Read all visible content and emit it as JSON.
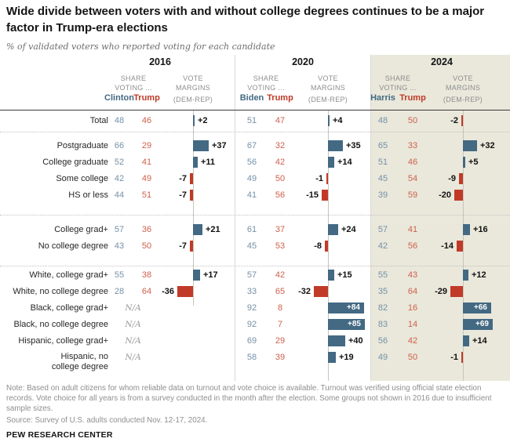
{
  "title": "Wide divide between voters with and without college degrees continues to be a major factor in Trump-era elections",
  "subtitle": "% of validated voters who reported voting for each candidate",
  "colors": {
    "dem_dark": "#436983",
    "rep_dark": "#bf3927",
    "dem_value": "#7591a7",
    "rep_value": "#d0604c",
    "bar_pos": "#436983",
    "bar_neg": "#c13a28",
    "highlight_bg": "#e9e8db"
  },
  "chart_data": {
    "type": "table",
    "unit": "percent of validated voters",
    "col_headers": {
      "share_line1": "SHARE",
      "share_line2": "VOTING ...",
      "margin_line1": "VOTE",
      "margin_line2": "MARGINS",
      "margin_line3": "(DEM-REP)"
    },
    "na_text": "N/A",
    "years": [
      {
        "label": "2016",
        "dem": "Clinton",
        "rep": "Trump",
        "highlight": false
      },
      {
        "label": "2020",
        "dem": "Biden",
        "rep": "Trump",
        "highlight": false
      },
      {
        "label": "2024",
        "dem": "Harris",
        "rep": "Trump",
        "highlight": true
      }
    ],
    "rows": [
      {
        "label": "Total",
        "values": [
          [
            48,
            46,
            2
          ],
          [
            51,
            47,
            4
          ],
          [
            48,
            50,
            -2
          ]
        ]
      },
      {
        "label": "Postgraduate",
        "values": [
          [
            66,
            29,
            37
          ],
          [
            67,
            32,
            35
          ],
          [
            65,
            33,
            32
          ]
        ]
      },
      {
        "label": "College graduate",
        "values": [
          [
            52,
            41,
            11
          ],
          [
            56,
            42,
            14
          ],
          [
            51,
            46,
            5
          ]
        ]
      },
      {
        "label": "Some college",
        "values": [
          [
            42,
            49,
            -7
          ],
          [
            49,
            50,
            -1
          ],
          [
            45,
            54,
            -9
          ]
        ]
      },
      {
        "label": "HS or less",
        "values": [
          [
            44,
            51,
            -7
          ],
          [
            41,
            56,
            -15
          ],
          [
            39,
            59,
            -20
          ]
        ]
      },
      {
        "label": "College grad+",
        "values": [
          [
            57,
            36,
            21
          ],
          [
            61,
            37,
            24
          ],
          [
            57,
            41,
            16
          ]
        ]
      },
      {
        "label": "No college degree",
        "values": [
          [
            43,
            50,
            -7
          ],
          [
            45,
            53,
            -8
          ],
          [
            42,
            56,
            -14
          ]
        ]
      },
      {
        "label": "White, college grad+",
        "values": [
          [
            55,
            38,
            17
          ],
          [
            57,
            42,
            15
          ],
          [
            55,
            43,
            12
          ]
        ]
      },
      {
        "label": "White, no college degree",
        "values": [
          [
            28,
            64,
            -36
          ],
          [
            33,
            65,
            -32
          ],
          [
            35,
            64,
            -29
          ]
        ]
      },
      {
        "label": "Black, college grad+",
        "values": [
          null,
          [
            92,
            8,
            84
          ],
          [
            82,
            16,
            66
          ]
        ]
      },
      {
        "label": "Black, no college degree",
        "values": [
          null,
          [
            92,
            7,
            85
          ],
          [
            83,
            14,
            69
          ]
        ]
      },
      {
        "label": "Hispanic, college grad+",
        "values": [
          null,
          [
            69,
            29,
            40
          ],
          [
            56,
            42,
            14
          ]
        ]
      },
      {
        "label": "Hispanic, no college degree",
        "values": [
          null,
          [
            58,
            39,
            19
          ],
          [
            49,
            50,
            -1
          ]
        ]
      }
    ]
  },
  "note": "Note: Based on adult citizens for whom reliable data on turnout and vote choice is available. Turnout was verified using official state election records. Vote choice for all years is from a survey conducted in the month after the election. Some groups not shown in 2016 due to insufficient sample sizes.",
  "source": "Source: Survey of U.S. adults conducted Nov. 12-17, 2024.",
  "footer": "PEW RESEARCH CENTER"
}
